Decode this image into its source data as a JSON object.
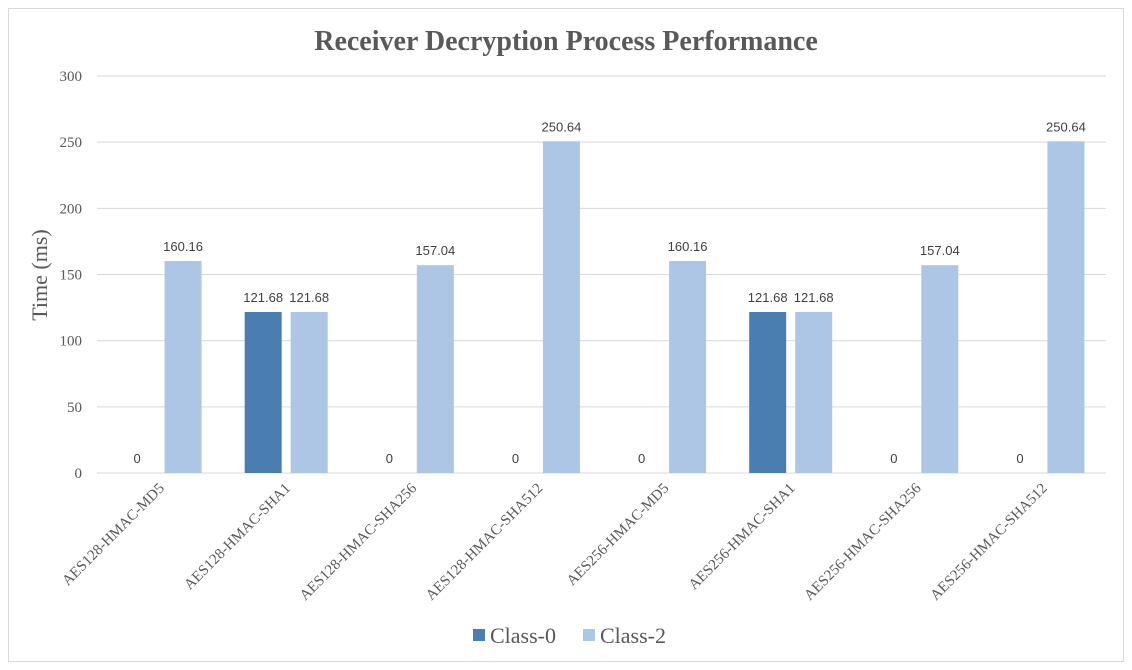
{
  "chart_data": {
    "type": "bar",
    "title": "Receiver Decryption Process Performance",
    "xlabel": "",
    "ylabel": "Time (ms)",
    "ylim": [
      0,
      300
    ],
    "yticks": [
      "0",
      "50",
      "100",
      "150",
      "200",
      "250",
      "300"
    ],
    "grid": true,
    "legend_position": "bottom",
    "categories": [
      "AES128-HMAC-MD5",
      "AES128-HMAC-SHA1",
      "AES128-HMAC-SHA256",
      "AES128-HMAC-SHA512",
      "AES256-HMAC-MD5",
      "AES256-HMAC-SHA1",
      "AES256-HMAC-SHA256",
      "AES256-HMAC-SHA512"
    ],
    "series": [
      {
        "name": "Class-0",
        "color": "#4a7eb0",
        "values": [
          0,
          121.68,
          0,
          0,
          0,
          121.68,
          0,
          0
        ],
        "labels": [
          "0",
          "121.68",
          "0",
          "0",
          "0",
          "121.68",
          "0",
          "0"
        ]
      },
      {
        "name": "Class-2",
        "color": "#adc6e5",
        "values": [
          160.16,
          121.68,
          157.04,
          250.64,
          160.16,
          121.68,
          157.04,
          250.64
        ],
        "labels": [
          "160.16",
          "121.68",
          "157.04",
          "250.64",
          "160.16",
          "121.68",
          "157.04",
          "250.64"
        ]
      }
    ]
  }
}
